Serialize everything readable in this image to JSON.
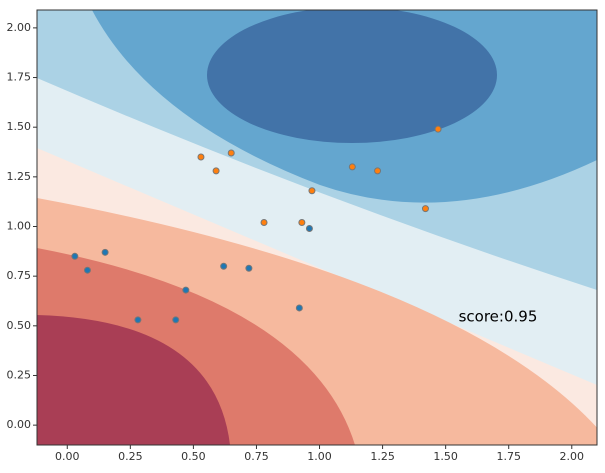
{
  "chart_data": {
    "type": "scatter",
    "annotation": "score:0.95",
    "series": [
      {
        "color": "#1f77b4",
        "x": [
          0.03,
          0.08,
          0.15,
          0.28,
          0.43,
          0.47,
          0.62,
          0.72,
          0.92,
          0.96
        ],
        "values": [
          0.85,
          0.78,
          0.87,
          0.53,
          0.53,
          0.68,
          0.8,
          0.79,
          0.59,
          0.99
        ]
      },
      {
        "color": "#ff7f0e",
        "x": [
          0.53,
          0.65,
          0.59,
          0.78,
          0.93,
          0.97,
          1.13,
          1.23,
          1.42,
          1.47
        ],
        "values": [
          1.35,
          1.37,
          1.28,
          1.02,
          1.02,
          1.18,
          1.3,
          1.28,
          1.09,
          1.49
        ]
      }
    ],
    "xlim": [
      -0.12,
      2.1
    ],
    "ylim": [
      -0.1,
      2.09
    ],
    "xticks": [
      {
        "value": 0,
        "label": "0.00"
      },
      {
        "value": 0.25,
        "label": "0.25"
      },
      {
        "value": 0.5,
        "label": "0.50"
      },
      {
        "value": 0.75,
        "label": "0.75"
      },
      {
        "value": 1,
        "label": "1.00"
      },
      {
        "value": 1.25,
        "label": "1.25"
      },
      {
        "value": 1.5,
        "label": "1.50"
      },
      {
        "value": 1.75,
        "label": "1.75"
      },
      {
        "value": 2,
        "label": "2.00"
      }
    ],
    "yticks": [
      {
        "value": 0,
        "label": "0.00"
      },
      {
        "value": 0.25,
        "label": "0.25"
      },
      {
        "value": 0.5,
        "label": "0.50"
      },
      {
        "value": 0.75,
        "label": "0.75"
      },
      {
        "value": 1,
        "label": "1.00"
      },
      {
        "value": 1.25,
        "label": "1.25"
      },
      {
        "value": 1.5,
        "label": "1.50"
      },
      {
        "value": 1.75,
        "label": "1.75"
      },
      {
        "value": 2,
        "label": "2.00"
      }
    ]
  }
}
